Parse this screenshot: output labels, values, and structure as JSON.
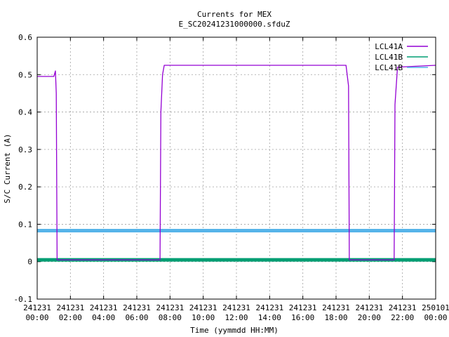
{
  "chart_data": {
    "type": "line",
    "title": "Currents for MEX",
    "subtitle": "E_SC20241231000000.sfduZ",
    "xlabel": "Time (yymmdd HH:MM)",
    "ylabel": "S/C Current (A)",
    "xlim_hours": [
      0,
      24
    ],
    "ylim": [
      -0.1,
      0.6
    ],
    "grid": true,
    "legend_position": "top-right",
    "y_ticks": [
      -0.1,
      0,
      0.1,
      0.2,
      0.3,
      0.4,
      0.5,
      0.6
    ],
    "y_tick_labels": [
      "-0.1",
      "0",
      "0.1",
      "0.2",
      "0.3",
      "0.4",
      "0.5",
      "0.6"
    ],
    "x_ticks_hours": [
      0,
      2,
      4,
      6,
      8,
      10,
      12,
      14,
      16,
      18,
      20,
      22,
      24
    ],
    "x_tick_labels": [
      [
        "241231",
        "00:00"
      ],
      [
        "241231",
        "02:00"
      ],
      [
        "241231",
        "04:00"
      ],
      [
        "241231",
        "06:00"
      ],
      [
        "241231",
        "08:00"
      ],
      [
        "241231",
        "10:00"
      ],
      [
        "241231",
        "12:00"
      ],
      [
        "241231",
        "14:00"
      ],
      [
        "241231",
        "16:00"
      ],
      [
        "241231",
        "18:00"
      ],
      [
        "241231",
        "20:00"
      ],
      [
        "241231",
        "22:00"
      ],
      [
        "250101",
        "00:00"
      ]
    ],
    "series": [
      {
        "name": "LCL41A",
        "color": "#9400d3",
        "points": [
          [
            0.0,
            0.495
          ],
          [
            1.0,
            0.495
          ],
          [
            1.1,
            0.51
          ],
          [
            1.15,
            0.45
          ],
          [
            1.2,
            0.005
          ],
          [
            7.4,
            0.005
          ],
          [
            7.45,
            0.4
          ],
          [
            7.55,
            0.5
          ],
          [
            7.65,
            0.525
          ],
          [
            8.0,
            0.525
          ],
          [
            18.6,
            0.525
          ],
          [
            18.75,
            0.47
          ],
          [
            18.8,
            0.005
          ],
          [
            21.5,
            0.005
          ],
          [
            21.55,
            0.42
          ],
          [
            21.7,
            0.52
          ],
          [
            24.0,
            0.525
          ]
        ]
      },
      {
        "name": "LCL41B",
        "color": "#009e73",
        "points": [
          [
            0.0,
            0.005
          ],
          [
            24.0,
            0.005
          ]
        ]
      },
      {
        "name": "LCL41B",
        "color": "#56b4e9",
        "points": [
          [
            0.0,
            0.083
          ],
          [
            24.0,
            0.083
          ]
        ]
      }
    ]
  }
}
